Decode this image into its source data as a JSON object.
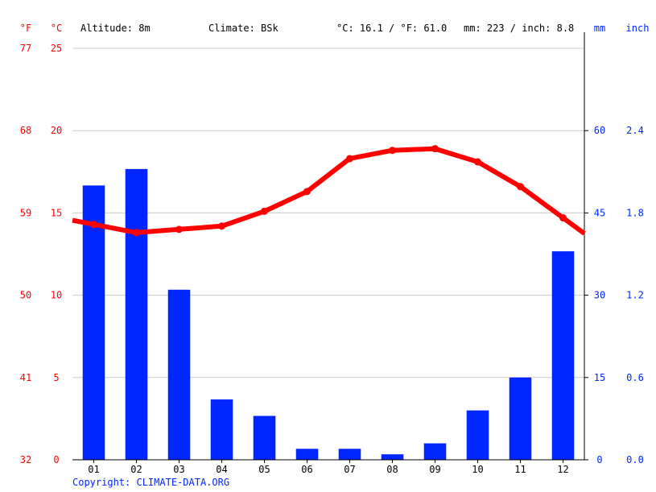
{
  "header": {
    "f_unit": "°F",
    "c_unit": "°C",
    "altitude": "Altitude: 8m",
    "climate": "Climate: BSk",
    "temp_summary": "°C: 16.1 / °F: 61.0",
    "precip_summary": "mm: 223 / inch: 8.8",
    "mm_unit": "mm",
    "inch_unit": "inch"
  },
  "footer": {
    "copyright": "Copyright: CLIMATE-DATA.ORG"
  },
  "colors": {
    "temperature": "#ff0000",
    "precipitation": "#0026ff",
    "grid": "#cccccc",
    "axis": "#000000",
    "text": "#000000"
  },
  "chart_data": {
    "type": "bar",
    "categories": [
      "01",
      "02",
      "03",
      "04",
      "05",
      "06",
      "07",
      "08",
      "09",
      "10",
      "11",
      "12"
    ],
    "series": [
      {
        "type": "bar",
        "unit": "mm",
        "axis": "right",
        "values": [
          50,
          53,
          31,
          11,
          8,
          2,
          2,
          1,
          3,
          9,
          15,
          38
        ]
      },
      {
        "type": "line",
        "unit": "°C",
        "axis": "left",
        "values": [
          14.3,
          13.8,
          14.0,
          14.2,
          15.1,
          16.3,
          18.3,
          18.8,
          18.9,
          18.1,
          16.6,
          14.7
        ]
      }
    ],
    "left_axis": {
      "celsius_ticks": [
        "0",
        "5",
        "10",
        "15",
        "20",
        "25"
      ],
      "fahrenheit_ticks": [
        "32",
        "41",
        "50",
        "59",
        "68",
        "77"
      ],
      "ylim": [
        0,
        25
      ]
    },
    "right_axis": {
      "mm_ticks": [
        "0",
        "15",
        "30",
        "45",
        "60"
      ],
      "inch_ticks": [
        "0.0",
        "0.6",
        "1.2",
        "1.8",
        "2.4"
      ],
      "ylim": [
        0,
        75
      ]
    },
    "grid": true
  }
}
